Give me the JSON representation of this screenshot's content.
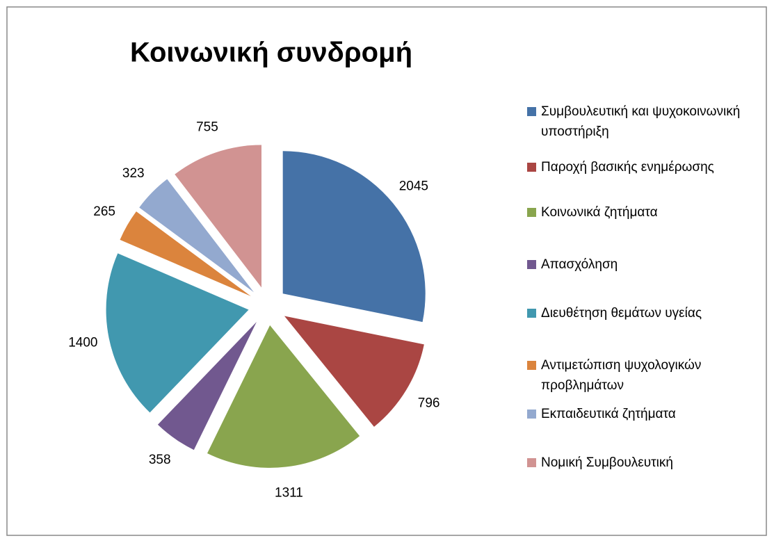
{
  "chart_data": {
    "type": "pie",
    "title": "Κοινωνική συνδρομή",
    "categories": [
      "Συμβουλευτική και ψυχοκοινωνική υποστήριξη",
      "Παροχή βασικής ενημέρωσης",
      "Κοινωνικά ζητήματα",
      "Απασχόληση",
      "Διευθέτηση θεμάτων υγείας",
      "Αντιμετώπιση ψυχολογικών προβλημάτων",
      "Εκπαιδευτικά ζητήματα",
      "Νομική Συμβουλευτική"
    ],
    "values": [
      2045,
      796,
      1311,
      358,
      1400,
      265,
      323,
      755
    ],
    "colors": [
      "#4572a7",
      "#aa4643",
      "#89a54e",
      "#71588f",
      "#4198af",
      "#db843d",
      "#93a9cf",
      "#d19392"
    ],
    "legend": "right"
  }
}
